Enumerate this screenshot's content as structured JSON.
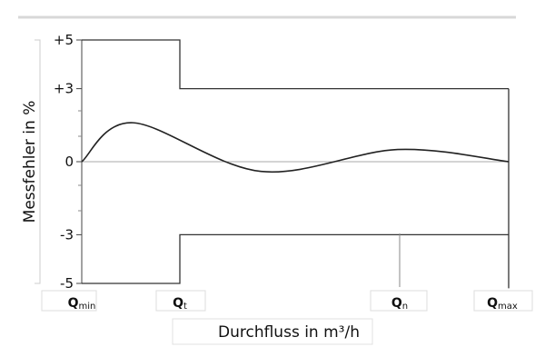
{
  "chart_data": {
    "type": "line",
    "xlabel": "Durchfluss in m³/h",
    "ylabel": "Messfehler in %",
    "ylim": [
      -5,
      5
    ],
    "y_ticks": [
      {
        "value": 5,
        "label": "+5"
      },
      {
        "value": 3,
        "label": "+3"
      },
      {
        "value": 0,
        "label": "0"
      },
      {
        "value": -3,
        "label": "-3"
      },
      {
        "value": -5,
        "label": "-5"
      }
    ],
    "x_ticks": [
      {
        "key": "qmin",
        "main": "Q",
        "sub": "min"
      },
      {
        "key": "qt",
        "main": "Q",
        "sub": "t"
      },
      {
        "key": "qn",
        "main": "Q",
        "sub": "n"
      },
      {
        "key": "qmax",
        "main": "Q",
        "sub": "max"
      }
    ],
    "tolerance_upper": [
      {
        "x": "Qmin",
        "y": 5
      },
      {
        "x": "Qt",
        "y": 5
      },
      {
        "x": "Qt",
        "y": 3
      },
      {
        "x": "Qmax",
        "y": 3
      }
    ],
    "tolerance_lower": [
      {
        "x": "Qmin",
        "y": -5
      },
      {
        "x": "Qt",
        "y": -5
      },
      {
        "x": "Qt",
        "y": -3
      },
      {
        "x": "Qmax",
        "y": -3
      }
    ],
    "error_curve_note_points": [
      {
        "x_rel": 0.0,
        "y": 0.0
      },
      {
        "x_rel": 0.12,
        "y": 1.6
      },
      {
        "x_rel": 0.42,
        "y": -0.4
      },
      {
        "x_rel": 0.74,
        "y": 0.5
      },
      {
        "x_rel": 1.0,
        "y": 0.0
      }
    ],
    "grid": false
  }
}
